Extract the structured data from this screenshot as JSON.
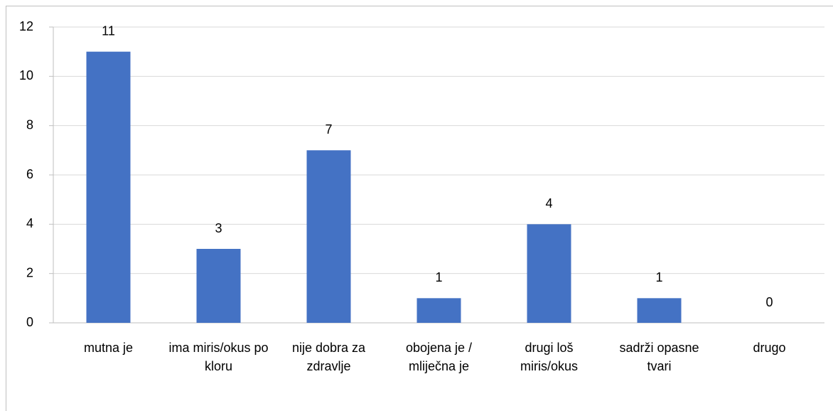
{
  "chart_data": {
    "type": "bar",
    "categories": [
      "mutna je",
      "ima miris/okus po kloru",
      "nije dobra za zdravlje",
      "obojena je / mliječna je",
      "drugi loš miris/okus",
      "sadrži opasne tvari",
      "drugo"
    ],
    "values": [
      11,
      3,
      7,
      1,
      4,
      1,
      0
    ],
    "color": "#4472c4",
    "ylim": [
      0,
      12
    ],
    "yticks": [
      0,
      2,
      4,
      6,
      8,
      10,
      12
    ],
    "grid": true
  }
}
